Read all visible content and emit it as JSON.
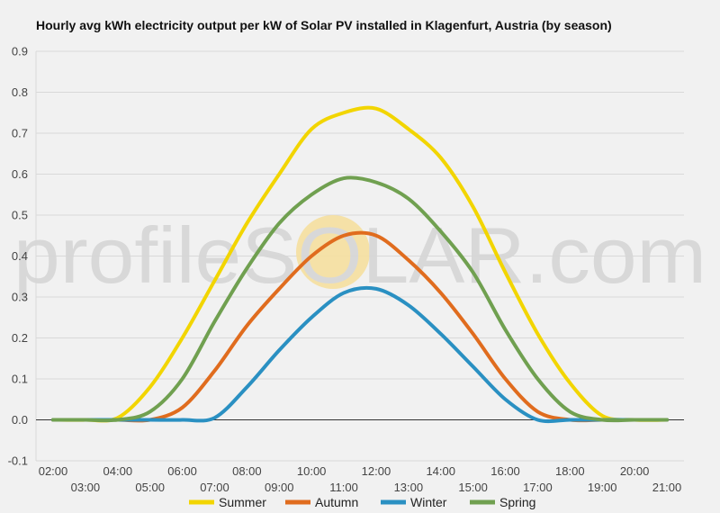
{
  "chart_data": {
    "type": "line",
    "title": "Hourly avg kWh electricity output per kW of Solar PV installed in Klagenfurt, Austria (by season)",
    "xlabel": "",
    "ylabel": "",
    "ylim": [
      -0.1,
      0.9
    ],
    "yticks": [
      "-0.1",
      "0.0",
      "0.1",
      "0.2",
      "0.3",
      "0.4",
      "0.5",
      "0.6",
      "0.7",
      "0.8",
      "0.9"
    ],
    "x": [
      "02:00",
      "03:00",
      "04:00",
      "05:00",
      "06:00",
      "07:00",
      "08:00",
      "09:00",
      "10:00",
      "11:00",
      "12:00",
      "13:00",
      "14:00",
      "15:00",
      "16:00",
      "17:00",
      "18:00",
      "19:00",
      "20:00",
      "21:00"
    ],
    "grid": true,
    "legend_position": "bottom",
    "series": [
      {
        "name": "Summer",
        "color": "#f2d500",
        "values": [
          0,
          0,
          0.005,
          0.08,
          0.2,
          0.34,
          0.48,
          0.6,
          0.71,
          0.75,
          0.76,
          0.71,
          0.64,
          0.52,
          0.36,
          0.21,
          0.09,
          0.01,
          0,
          0
        ]
      },
      {
        "name": "Autumn",
        "color": "#e06c1e",
        "values": [
          0,
          0,
          0,
          0,
          0.03,
          0.12,
          0.23,
          0.32,
          0.4,
          0.45,
          0.45,
          0.39,
          0.31,
          0.21,
          0.1,
          0.02,
          0,
          0,
          0,
          0
        ]
      },
      {
        "name": "Winter",
        "color": "#2a90c2",
        "values": [
          0,
          0,
          0,
          0,
          0,
          0.005,
          0.08,
          0.17,
          0.25,
          0.31,
          0.32,
          0.28,
          0.21,
          0.13,
          0.05,
          0,
          0,
          0,
          0,
          0
        ]
      },
      {
        "name": "Spring",
        "color": "#70a050",
        "values": [
          0,
          0,
          0,
          0.02,
          0.1,
          0.24,
          0.37,
          0.48,
          0.55,
          0.59,
          0.58,
          0.54,
          0.46,
          0.36,
          0.22,
          0.1,
          0.02,
          0,
          0,
          0
        ]
      }
    ]
  },
  "watermark": {
    "text": "profileSOLAR.com"
  }
}
